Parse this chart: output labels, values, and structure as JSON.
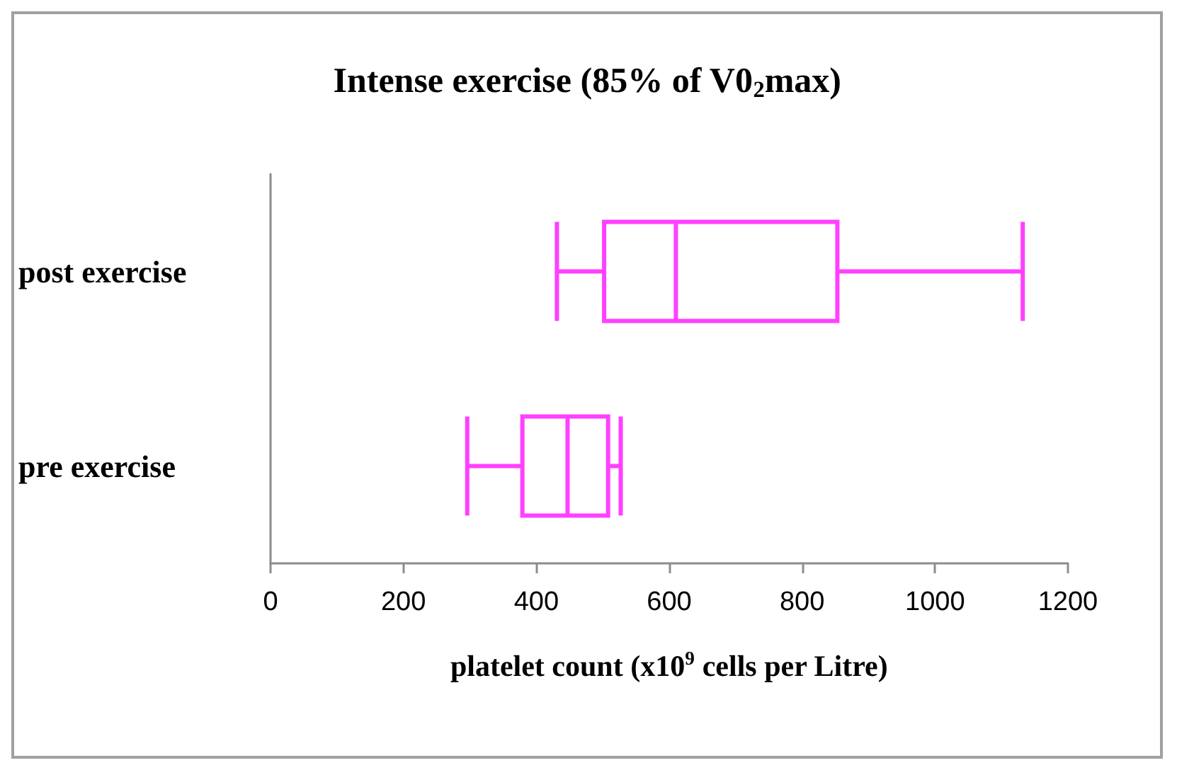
{
  "chart_data": {
    "type": "box",
    "title": "Intense exercise (85% of V0$_{2}$max)",
    "xlabel": "platelet count (x10$^{9}$ cells per Litre)",
    "orientation": "horizontal",
    "categories": [
      "post exercise",
      "pre exercise"
    ],
    "xlim": [
      0,
      1200
    ],
    "xticks": [
      0,
      200,
      400,
      600,
      800,
      1000,
      1200
    ],
    "grid": false,
    "series": [
      {
        "color": "#ff40ff",
        "boxes": [
          {
            "low": 431,
            "q1": 502,
            "median": 610,
            "q3": 853,
            "high": 1132
          },
          {
            "low": 296,
            "q1": 379,
            "median": 447,
            "q3": 508,
            "high": 527
          }
        ]
      }
    ]
  }
}
